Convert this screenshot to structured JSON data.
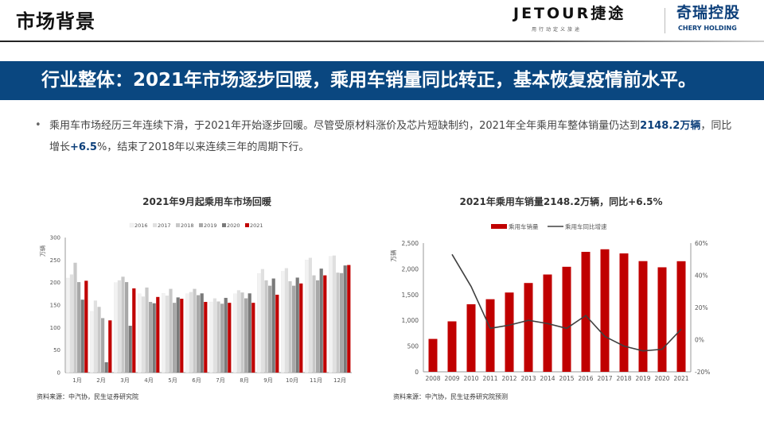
{
  "header": {
    "section_title": "市场背景",
    "logo_jetour": "JETOUR捷途",
    "logo_jetour_tagline": "用行动定义旅途",
    "logo_chery": "奇瑞控股",
    "logo_chery_en": "CHERY HOLDING"
  },
  "banner": {
    "text": "行业整体：2021年市场逐步回暖，乘用车销量同比转正，基本恢复疫情前水平。"
  },
  "paragraph": {
    "part1": "乘用车市场经历三年连续下滑，于2021年开始逐步回暖。尽管受原材料涨价及芯片短缺制约，2021年全年乘用车整体销量仍达到",
    "highlight1": "2148.2万辆",
    "part2": "，同比增长",
    "highlight2": "+6.5",
    "part3": "%，结束了2018年以来连续三年的周期下行。"
  },
  "colors": {
    "brand_blue": "#0a4780",
    "bar_red": "#c00000",
    "line_dark": "#404040"
  },
  "chart_data": [
    {
      "type": "bar",
      "title": "2021年9月起乘用车市场回暖",
      "ylabel": "万辆",
      "ylim": [
        0,
        300
      ],
      "yticks": [
        0,
        50,
        100,
        150,
        200,
        250,
        300
      ],
      "legend_position": "top",
      "grid": false,
      "categories": [
        "1月",
        "2月",
        "3月",
        "4月",
        "5月",
        "6月",
        "7月",
        "8月",
        "9月",
        "10月",
        "11月",
        "12月"
      ],
      "series": [
        {
          "name": "2016",
          "color": "#f2f2f2",
          "values": [
            210,
            136,
            200,
            175,
            176,
            175,
            157,
            175,
            220,
            225,
            250,
            258
          ]
        },
        {
          "name": "2017",
          "color": "#e0e0e0",
          "values": [
            218,
            160,
            205,
            169,
            171,
            179,
            165,
            183,
            230,
            232,
            255,
            260
          ]
        },
        {
          "name": "2018",
          "color": "#c8c8c8",
          "values": [
            244,
            146,
            213,
            189,
            186,
            186,
            158,
            178,
            205,
            203,
            216,
            222
          ]
        },
        {
          "name": "2019",
          "color": "#a8a8a8",
          "values": [
            201,
            121,
            201,
            157,
            155,
            172,
            153,
            165,
            193,
            193,
            205,
            221
          ]
        },
        {
          "name": "2020",
          "color": "#7a7a7a",
          "values": [
            162,
            23,
            104,
            154,
            167,
            176,
            166,
            176,
            209,
            211,
            231,
            238
          ]
        },
        {
          "name": "2021",
          "color": "#c00000",
          "values": [
            204,
            116,
            187,
            168,
            164,
            157,
            155,
            155,
            173,
            198,
            216,
            239
          ]
        }
      ],
      "source": "资料来源：中汽协，民生证券研究院"
    },
    {
      "type": "bar+line",
      "title": "2021年乘用车销量2148.2万辆，同比+6.5%",
      "ylabel": "万辆",
      "ylim": [
        0,
        2500
      ],
      "yticks": [
        "0",
        "500",
        "1,000",
        "1,500",
        "2,000",
        "2,500"
      ],
      "y2lim": [
        -20,
        60
      ],
      "y2ticks": [
        "-20%",
        "0%",
        "20%",
        "40%",
        "60%"
      ],
      "legend_position": "top",
      "grid": false,
      "categories": [
        "2008",
        "2009",
        "2010",
        "2011",
        "2012",
        "2013",
        "2014",
        "2015",
        "2016",
        "2017",
        "2018",
        "2019",
        "2020",
        "2021"
      ],
      "series": [
        {
          "name": "乘用车销量",
          "type": "bar",
          "axis": "left",
          "values": [
            639,
            980,
            1312,
            1410,
            1540,
            1725,
            1890,
            2040,
            2330,
            2380,
            2300,
            2150,
            2030,
            2148.2
          ]
        },
        {
          "name": "乘用车同比增速",
          "type": "line",
          "axis": "right",
          "values": [
            null,
            53,
            33,
            7,
            9,
            12,
            10,
            7,
            15,
            2,
            -4,
            -7,
            -6,
            6.5
          ]
        }
      ],
      "source": "资料来源：中汽协，民生证券研究院预测"
    }
  ]
}
